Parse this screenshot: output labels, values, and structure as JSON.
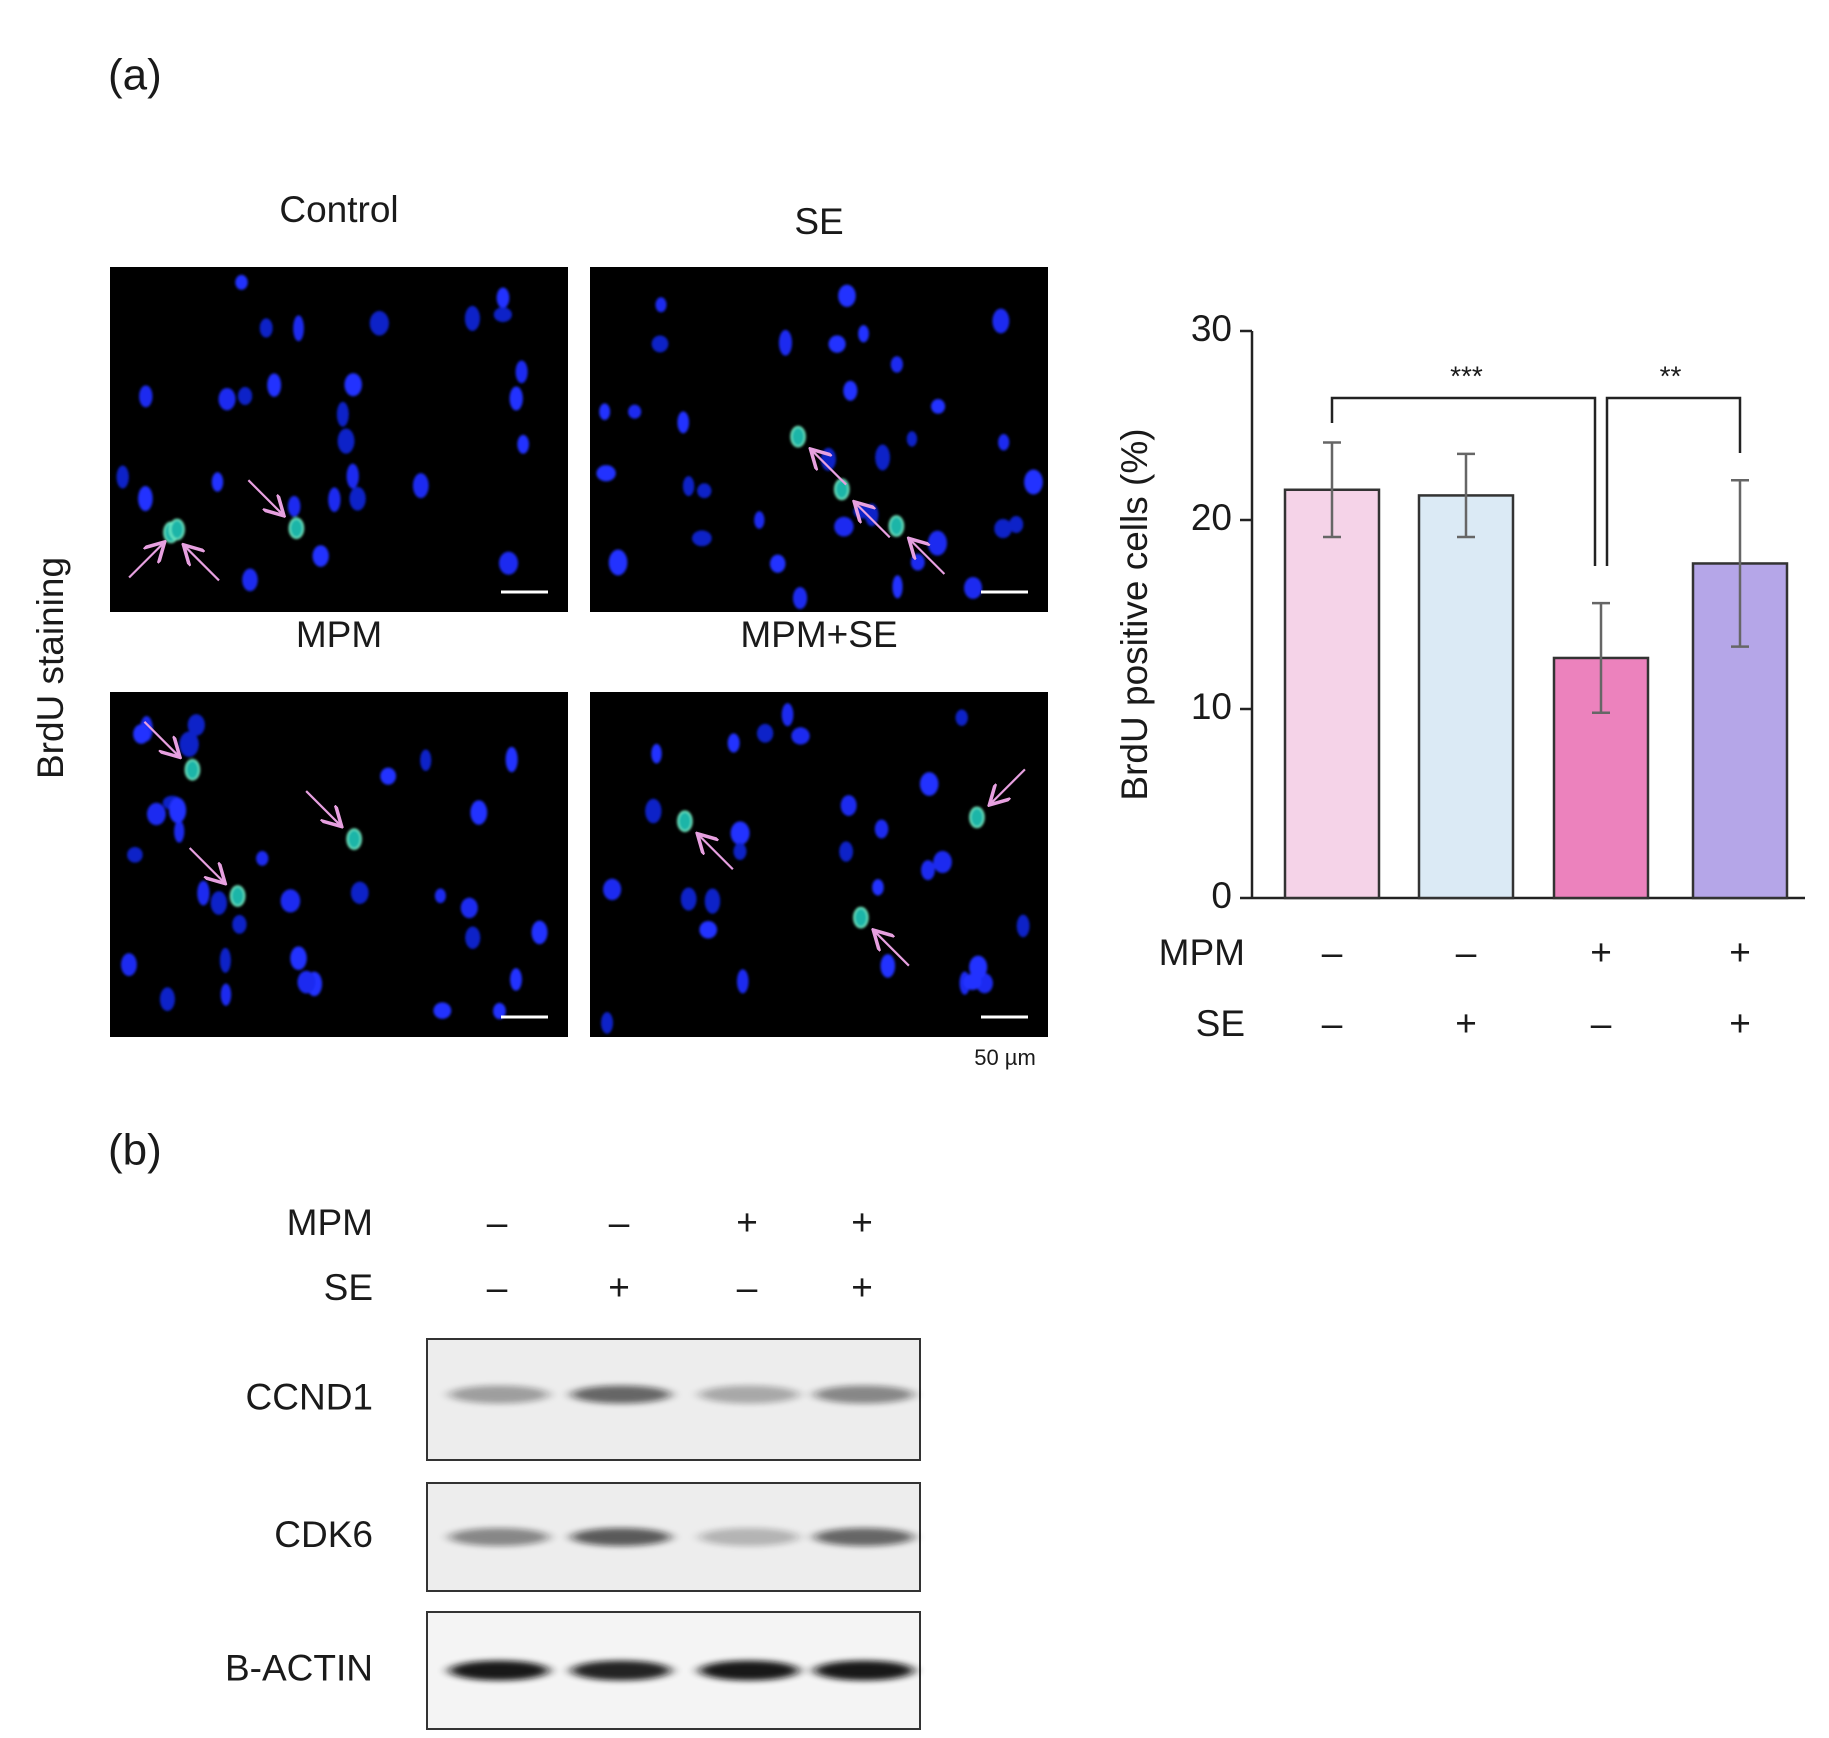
{
  "panel_a": {
    "label": "(a)",
    "side_label": "BrdU staining",
    "image_titles": [
      "Control",
      "SE",
      "MPM",
      "MPM+SE"
    ],
    "scale_bar_label": "50 µm"
  },
  "chart_data": {
    "type": "bar",
    "ylabel": "BrdU positive cells (%)",
    "categories": [
      null,
      null,
      null,
      null
    ],
    "values": [
      21.6,
      21.3,
      12.7,
      17.7
    ],
    "errors": [
      2.5,
      2.2,
      2.9,
      4.4
    ],
    "colors": [
      "#f5d3e8",
      "#dbeaf5",
      "#ec82bd",
      "#b5a6e8"
    ],
    "ylim": [
      0,
      30
    ],
    "yticks": [
      0,
      10,
      20,
      30
    ],
    "significance": [
      "***",
      "**"
    ],
    "conditions": [
      {
        "name": "MPM",
        "signs": [
          "–",
          "–",
          "+",
          "+"
        ]
      },
      {
        "name": "SE",
        "signs": [
          "–",
          "+",
          "–",
          "+"
        ]
      }
    ]
  },
  "panel_b": {
    "label": "(b)",
    "conditions": [
      {
        "name": "MPM",
        "signs": [
          "–",
          "–",
          "+",
          "+"
        ]
      },
      {
        "name": "SE",
        "signs": [
          "–",
          "+",
          "–",
          "+"
        ]
      }
    ],
    "blots": [
      "CCND1",
      "CDK6",
      "B-ACTIN"
    ]
  }
}
